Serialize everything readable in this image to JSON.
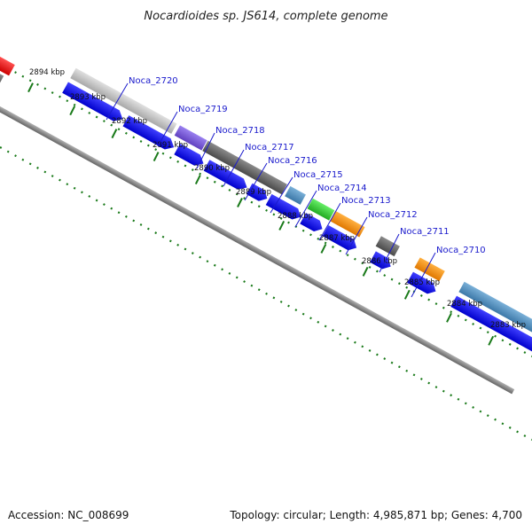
{
  "title": "Nocardioides sp. JS614, complete genome",
  "accession": "Accession: NC_008699",
  "summary": "Topology: circular; Length: 4,985,871 bp; Genes: 4,700",
  "colors": {
    "cds": "#0000ee",
    "backbone": "#808080",
    "ruler_tick": "#1a7a1a",
    "gene_label": "#1a1acc"
  },
  "ruler_labels": [
    "2894 kbp",
    "2893 kbp",
    "2892 kbp",
    "2891 kbp",
    "2890 kbp",
    "2889 kbp",
    "2888 kbp",
    "2887 kbp",
    "2886 kbp",
    "2885 kbp",
    "2884 kbp",
    "2883 kbp"
  ],
  "gene_labels": [
    "Noca_2720",
    "Noca_2719",
    "Noca_2718",
    "Noca_2717",
    "Noca_2716",
    "Noca_2715",
    "Noca_2714",
    "Noca_2713",
    "Noca_2712",
    "Noca_2711",
    "Noca_2710"
  ]
}
